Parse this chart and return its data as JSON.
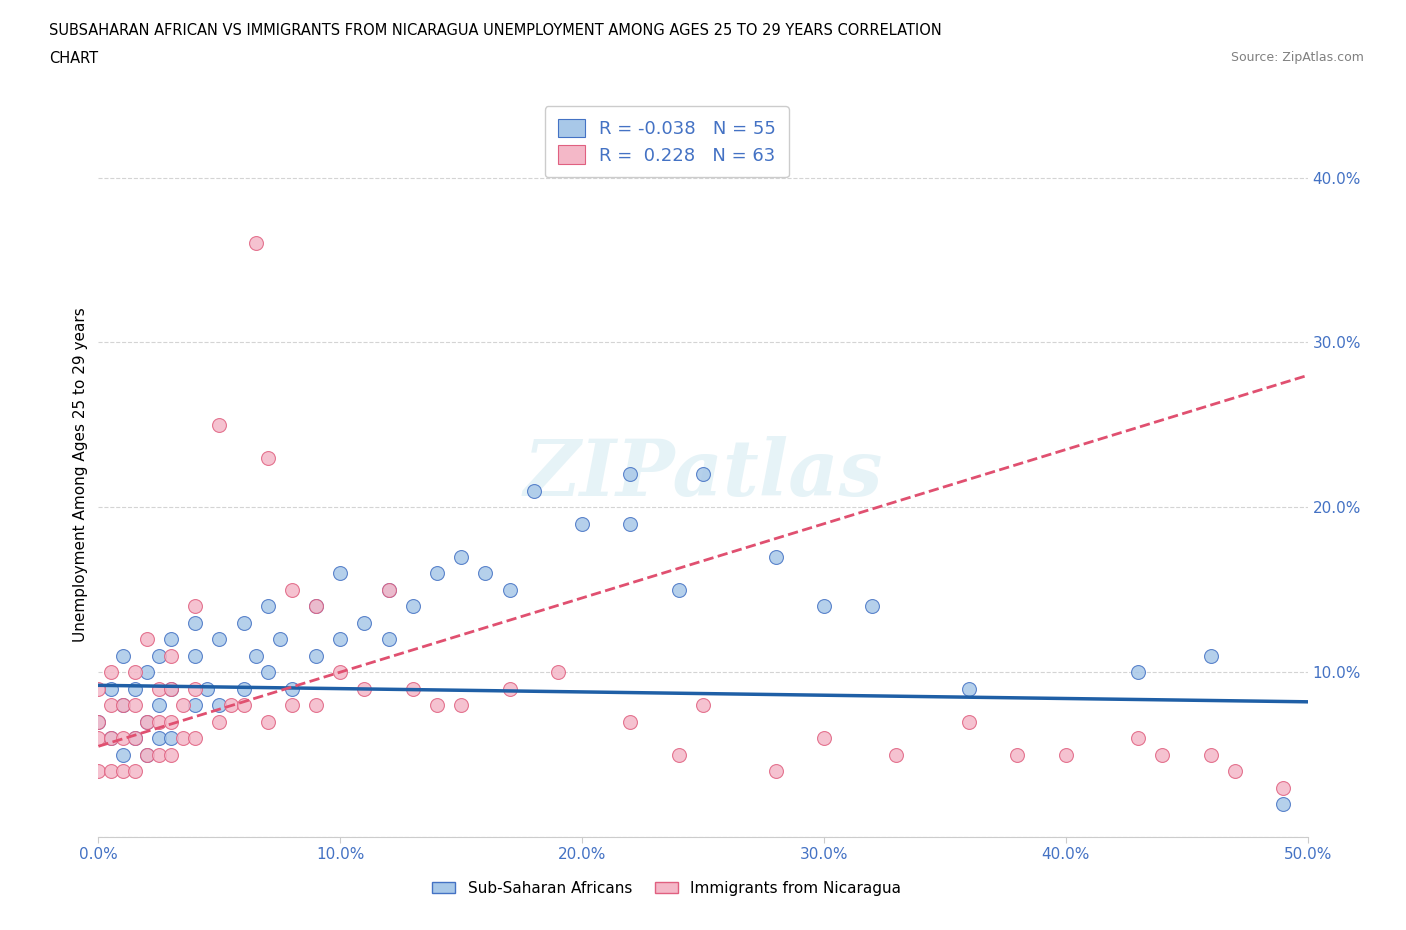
{
  "title_line1": "SUBSAHARAN AFRICAN VS IMMIGRANTS FROM NICARAGUA UNEMPLOYMENT AMONG AGES 25 TO 29 YEARS CORRELATION",
  "title_line2": "CHART",
  "source": "Source: ZipAtlas.com",
  "ylabel": "Unemployment Among Ages 25 to 29 years",
  "xlim": [
    0.0,
    0.5
  ],
  "ylim": [
    0.0,
    0.44
  ],
  "xticks": [
    0.0,
    0.1,
    0.2,
    0.3,
    0.4,
    0.5
  ],
  "xticklabels": [
    "0.0%",
    "10.0%",
    "20.0%",
    "30.0%",
    "40.0%",
    "50.0%"
  ],
  "yticks": [
    0.0,
    0.1,
    0.2,
    0.3,
    0.4
  ],
  "yticklabels_right": [
    "",
    "10.0%",
    "20.0%",
    "30.0%",
    "40.0%"
  ],
  "color_blue_fill": "#a8c8e8",
  "color_pink_fill": "#f4b8c8",
  "color_blue_edge": "#4472c4",
  "color_pink_edge": "#e06080",
  "color_blue_line": "#1f5fa6",
  "color_pink_line": "#e05070",
  "color_axis": "#4472c4",
  "watermark": "ZIPatlas",
  "legend_blue_R": "-0.038",
  "legend_blue_N": "55",
  "legend_pink_R": "0.228",
  "legend_pink_N": "63",
  "label_blue": "Sub-Saharan Africans",
  "label_pink": "Immigrants from Nicaragua",
  "blue_scatter_x": [
    0.0,
    0.005,
    0.005,
    0.01,
    0.01,
    0.01,
    0.015,
    0.015,
    0.02,
    0.02,
    0.02,
    0.025,
    0.025,
    0.025,
    0.03,
    0.03,
    0.03,
    0.04,
    0.04,
    0.04,
    0.045,
    0.05,
    0.05,
    0.06,
    0.06,
    0.065,
    0.07,
    0.07,
    0.075,
    0.08,
    0.09,
    0.09,
    0.1,
    0.1,
    0.11,
    0.12,
    0.12,
    0.13,
    0.14,
    0.15,
    0.16,
    0.17,
    0.18,
    0.2,
    0.22,
    0.22,
    0.24,
    0.25,
    0.28,
    0.3,
    0.32,
    0.36,
    0.43,
    0.46,
    0.49
  ],
  "blue_scatter_y": [
    0.07,
    0.06,
    0.09,
    0.05,
    0.08,
    0.11,
    0.06,
    0.09,
    0.05,
    0.07,
    0.1,
    0.06,
    0.08,
    0.11,
    0.06,
    0.09,
    0.12,
    0.08,
    0.11,
    0.13,
    0.09,
    0.08,
    0.12,
    0.09,
    0.13,
    0.11,
    0.1,
    0.14,
    0.12,
    0.09,
    0.11,
    0.14,
    0.12,
    0.16,
    0.13,
    0.12,
    0.15,
    0.14,
    0.16,
    0.17,
    0.16,
    0.15,
    0.21,
    0.19,
    0.19,
    0.22,
    0.15,
    0.22,
    0.17,
    0.14,
    0.14,
    0.09,
    0.1,
    0.11,
    0.02
  ],
  "pink_scatter_x": [
    0.0,
    0.0,
    0.0,
    0.0,
    0.005,
    0.005,
    0.005,
    0.005,
    0.01,
    0.01,
    0.01,
    0.015,
    0.015,
    0.015,
    0.015,
    0.02,
    0.02,
    0.02,
    0.025,
    0.025,
    0.025,
    0.03,
    0.03,
    0.03,
    0.03,
    0.035,
    0.035,
    0.04,
    0.04,
    0.04,
    0.05,
    0.05,
    0.055,
    0.06,
    0.065,
    0.07,
    0.07,
    0.08,
    0.08,
    0.09,
    0.09,
    0.1,
    0.11,
    0.12,
    0.13,
    0.14,
    0.15,
    0.17,
    0.19,
    0.22,
    0.24,
    0.25,
    0.28,
    0.3,
    0.33,
    0.36,
    0.38,
    0.4,
    0.43,
    0.44,
    0.46,
    0.47,
    0.49
  ],
  "pink_scatter_y": [
    0.04,
    0.06,
    0.07,
    0.09,
    0.04,
    0.06,
    0.08,
    0.1,
    0.04,
    0.06,
    0.08,
    0.04,
    0.06,
    0.08,
    0.1,
    0.05,
    0.07,
    0.12,
    0.05,
    0.07,
    0.09,
    0.05,
    0.07,
    0.09,
    0.11,
    0.06,
    0.08,
    0.06,
    0.09,
    0.14,
    0.07,
    0.25,
    0.08,
    0.08,
    0.36,
    0.07,
    0.23,
    0.08,
    0.15,
    0.08,
    0.14,
    0.1,
    0.09,
    0.15,
    0.09,
    0.08,
    0.08,
    0.09,
    0.1,
    0.07,
    0.05,
    0.08,
    0.04,
    0.06,
    0.05,
    0.07,
    0.05,
    0.05,
    0.06,
    0.05,
    0.05,
    0.04,
    0.03
  ],
  "blue_trend_x": [
    0.0,
    0.5
  ],
  "blue_trend_y": [
    0.092,
    0.082
  ],
  "pink_trend_x": [
    0.0,
    0.15
  ],
  "pink_trend_y": [
    0.055,
    0.155
  ],
  "grid_color": "#d0d0d0",
  "grid_linestyle": "--"
}
